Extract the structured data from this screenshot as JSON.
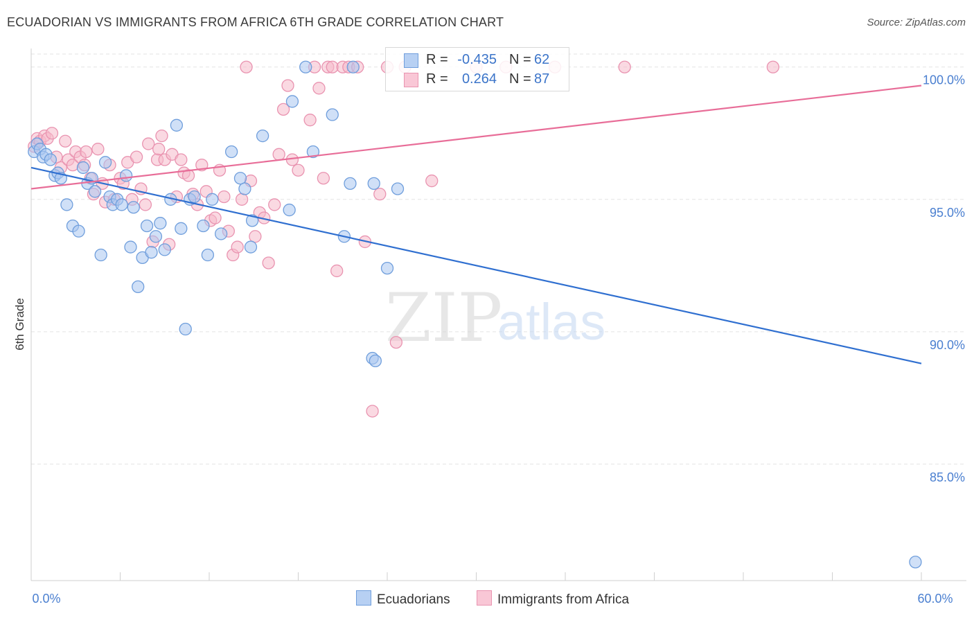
{
  "title": "ECUADORIAN VS IMMIGRANTS FROM AFRICA 6TH GRADE CORRELATION CHART",
  "source": "Source: ZipAtlas.com",
  "watermark": {
    "zip": "ZIP",
    "atlas": "atlas"
  },
  "legend_stats": [
    {
      "r_label": "R =",
      "r_value": "-0.435",
      "n_label": "N =",
      "n_value": "62"
    },
    {
      "r_label": "R =",
      "r_value": "0.264",
      "n_label": "N =",
      "n_value": "87"
    }
  ],
  "bottom_legend": [
    "Ecuadorians",
    "Immigrants from Africa"
  ],
  "colors": {
    "blue_fill": "#a9c6f0",
    "blue_stroke": "#6f9edc",
    "blue_line": "#2f6fd0",
    "pink_fill": "#f6b9cb",
    "pink_stroke": "#e993b0",
    "pink_line": "#e86d98",
    "tick_label": "#4a7fd0",
    "grid": "#e3e3e3"
  },
  "chart_data": {
    "type": "scatter",
    "title": "ECUADORIAN VS IMMIGRANTS FROM AFRICA 6TH GRADE CORRELATION CHART",
    "xlabel": "",
    "ylabel": "6th Grade",
    "xlim": [
      0,
      60
    ],
    "ylim": [
      80.6,
      100.7
    ],
    "x_tick_labels": [
      {
        "value": 0,
        "label": "0.0%"
      },
      {
        "value": 60,
        "label": "60.0%"
      }
    ],
    "y_tick_labels": [
      {
        "value": 100,
        "label": "100.0%"
      },
      {
        "value": 95,
        "label": "95.0%"
      },
      {
        "value": 90,
        "label": "90.0%"
      },
      {
        "value": 85,
        "label": "85.0%"
      }
    ],
    "grid": true,
    "series": [
      {
        "name": "Ecuadorians",
        "r": -0.435,
        "n": 62,
        "trend": {
          "x": [
            0,
            60
          ],
          "y": [
            96.2,
            88.8
          ]
        },
        "points": [
          [
            0.2,
            96.8
          ],
          [
            0.4,
            97.1
          ],
          [
            0.6,
            96.9
          ],
          [
            0.8,
            96.6
          ],
          [
            1.0,
            96.7
          ],
          [
            1.3,
            96.5
          ],
          [
            1.6,
            95.9
          ],
          [
            1.8,
            96.0
          ],
          [
            2.0,
            95.8
          ],
          [
            2.4,
            94.8
          ],
          [
            2.8,
            94.0
          ],
          [
            3.2,
            93.8
          ],
          [
            3.5,
            96.2
          ],
          [
            3.8,
            95.6
          ],
          [
            4.1,
            95.8
          ],
          [
            4.3,
            95.3
          ],
          [
            4.7,
            92.9
          ],
          [
            5.0,
            96.4
          ],
          [
            5.3,
            95.1
          ],
          [
            5.5,
            94.8
          ],
          [
            5.8,
            95.0
          ],
          [
            6.1,
            94.8
          ],
          [
            6.4,
            95.9
          ],
          [
            6.7,
            93.2
          ],
          [
            6.9,
            94.7
          ],
          [
            7.2,
            91.7
          ],
          [
            7.5,
            92.8
          ],
          [
            7.8,
            94.0
          ],
          [
            8.1,
            93.0
          ],
          [
            8.4,
            93.6
          ],
          [
            8.7,
            94.1
          ],
          [
            9.0,
            93.1
          ],
          [
            9.4,
            95.0
          ],
          [
            9.8,
            97.8
          ],
          [
            10.1,
            93.9
          ],
          [
            10.4,
            90.1
          ],
          [
            10.7,
            95.0
          ],
          [
            11.0,
            95.1
          ],
          [
            11.6,
            94.0
          ],
          [
            11.9,
            92.9
          ],
          [
            12.2,
            95.0
          ],
          [
            12.8,
            93.7
          ],
          [
            13.5,
            96.8
          ],
          [
            14.1,
            95.8
          ],
          [
            14.4,
            95.4
          ],
          [
            14.9,
            94.2
          ],
          [
            14.8,
            93.2
          ],
          [
            15.6,
            97.4
          ],
          [
            17.4,
            94.6
          ],
          [
            17.6,
            98.7
          ],
          [
            18.5,
            100.0
          ],
          [
            19.0,
            96.8
          ],
          [
            20.3,
            98.2
          ],
          [
            21.1,
            93.6
          ],
          [
            21.5,
            95.6
          ],
          [
            21.7,
            100.0
          ],
          [
            23.0,
            89.0
          ],
          [
            23.1,
            95.6
          ],
          [
            23.2,
            88.9
          ],
          [
            24.0,
            92.4
          ],
          [
            24.7,
            95.4
          ],
          [
            59.6,
            81.3
          ]
        ]
      },
      {
        "name": "Immigrants from Africa",
        "r": 0.264,
        "n": 87,
        "trend": {
          "x": [
            0,
            60
          ],
          "y": [
            95.4,
            99.3
          ]
        },
        "points": [
          [
            0.2,
            97.0
          ],
          [
            0.4,
            97.3
          ],
          [
            0.6,
            97.2
          ],
          [
            0.9,
            97.4
          ],
          [
            1.1,
            97.3
          ],
          [
            1.4,
            97.5
          ],
          [
            1.7,
            96.6
          ],
          [
            2.0,
            96.2
          ],
          [
            2.3,
            97.2
          ],
          [
            2.5,
            96.5
          ],
          [
            2.8,
            96.3
          ],
          [
            3.0,
            96.8
          ],
          [
            3.3,
            96.6
          ],
          [
            3.7,
            96.8
          ],
          [
            4.0,
            95.8
          ],
          [
            4.2,
            95.2
          ],
          [
            4.5,
            96.9
          ],
          [
            4.8,
            95.6
          ],
          [
            5.0,
            94.9
          ],
          [
            5.3,
            96.3
          ],
          [
            5.6,
            95.0
          ],
          [
            6.0,
            95.8
          ],
          [
            6.2,
            95.6
          ],
          [
            6.5,
            96.4
          ],
          [
            6.8,
            95.0
          ],
          [
            7.1,
            96.6
          ],
          [
            7.4,
            95.4
          ],
          [
            7.7,
            94.8
          ],
          [
            7.9,
            97.1
          ],
          [
            8.2,
            93.4
          ],
          [
            8.5,
            96.5
          ],
          [
            8.8,
            97.4
          ],
          [
            9.0,
            96.5
          ],
          [
            9.3,
            93.3
          ],
          [
            9.5,
            96.7
          ],
          [
            9.8,
            95.1
          ],
          [
            10.1,
            96.5
          ],
          [
            10.3,
            96.0
          ],
          [
            10.6,
            95.9
          ],
          [
            10.9,
            95.2
          ],
          [
            11.2,
            94.8
          ],
          [
            11.5,
            96.3
          ],
          [
            11.8,
            95.3
          ],
          [
            12.1,
            94.2
          ],
          [
            12.4,
            94.3
          ],
          [
            12.7,
            96.1
          ],
          [
            13.0,
            95.1
          ],
          [
            13.3,
            93.8
          ],
          [
            13.6,
            92.9
          ],
          [
            13.9,
            93.2
          ],
          [
            14.2,
            95.0
          ],
          [
            14.5,
            100.0
          ],
          [
            14.8,
            95.7
          ],
          [
            15.1,
            93.6
          ],
          [
            15.4,
            94.5
          ],
          [
            15.7,
            94.3
          ],
          [
            16.0,
            92.6
          ],
          [
            16.4,
            94.8
          ],
          [
            16.7,
            96.7
          ],
          [
            17.0,
            98.4
          ],
          [
            17.3,
            99.3
          ],
          [
            17.6,
            96.5
          ],
          [
            18.0,
            96.1
          ],
          [
            18.8,
            98.0
          ],
          [
            19.1,
            100.0
          ],
          [
            19.4,
            99.2
          ],
          [
            19.7,
            95.8
          ],
          [
            20.0,
            100.0
          ],
          [
            20.3,
            100.0
          ],
          [
            20.6,
            92.3
          ],
          [
            21.0,
            100.0
          ],
          [
            21.4,
            100.0
          ],
          [
            22.0,
            100.0
          ],
          [
            22.5,
            93.4
          ],
          [
            23.0,
            87.0
          ],
          [
            23.5,
            95.2
          ],
          [
            24.0,
            100.0
          ],
          [
            24.6,
            89.6
          ],
          [
            25.2,
            100.0
          ],
          [
            27.0,
            95.7
          ],
          [
            30.0,
            100.0
          ],
          [
            32.0,
            100.0
          ],
          [
            35.3,
            100.0
          ],
          [
            40.0,
            100.0
          ],
          [
            50.0,
            100.0
          ],
          [
            8.6,
            96.9
          ],
          [
            3.6,
            96.3
          ]
        ]
      }
    ]
  }
}
